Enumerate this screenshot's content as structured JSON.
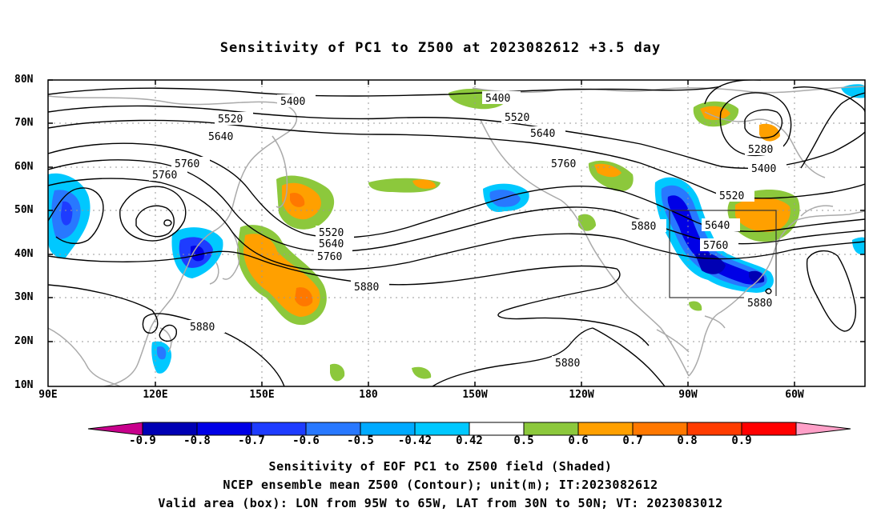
{
  "title": "Sensitivity of PC1 to Z500 at 2023082612 +3.5 day",
  "map": {
    "lat_labels": [
      "80N",
      "70N",
      "60N",
      "50N",
      "40N",
      "30N",
      "20N",
      "10N"
    ],
    "lon_labels": [
      "90E",
      "120E",
      "150E",
      "180",
      "150W",
      "120W",
      "90W",
      "60W"
    ],
    "contour_labels": [
      {
        "text": "5400"
      },
      {
        "text": "5400"
      },
      {
        "text": "5520"
      },
      {
        "text": "5520"
      },
      {
        "text": "5640"
      },
      {
        "text": "5640"
      },
      {
        "text": "5760"
      },
      {
        "text": "5760"
      },
      {
        "text": "5760"
      },
      {
        "text": "5520"
      },
      {
        "text": "5640"
      },
      {
        "text": "5760"
      },
      {
        "text": "5880"
      },
      {
        "text": "5880"
      },
      {
        "text": "5880"
      },
      {
        "text": "5880"
      },
      {
        "text": "5880"
      },
      {
        "text": "5280"
      },
      {
        "text": "5400"
      },
      {
        "text": "5520"
      },
      {
        "text": "5640"
      },
      {
        "text": "5760"
      }
    ],
    "valid_box": {
      "lon_from": "95W",
      "lon_to": "65W",
      "lat_from": "30N",
      "lat_to": "50N"
    }
  },
  "colorbar": {
    "labels": [
      "-0.9",
      "-0.8",
      "-0.7",
      "-0.6",
      "-0.5",
      "-0.42",
      "0.42",
      "0.5",
      "0.6",
      "0.7",
      "0.8",
      "0.9"
    ],
    "colors": [
      "#c8008c",
      "#0000b4",
      "#0000e6",
      "#1e3cff",
      "#2878ff",
      "#00aaff",
      "#00c8ff",
      "#ffffff",
      "#8cc83c",
      "#ffa000",
      "#ff7800",
      "#ff3c00",
      "#ff0000",
      "#ffa0c8"
    ]
  },
  "captions": {
    "line1": "Sensitivity of EOF PC1 to Z500 field (Shaded)",
    "line2": "NCEP ensemble mean Z500 (Contour); unit(m); IT:2023082612",
    "line3": "Valid area (box): LON from 95W to 65W, LAT from 30N to 50N; VT: 2023083012"
  }
}
